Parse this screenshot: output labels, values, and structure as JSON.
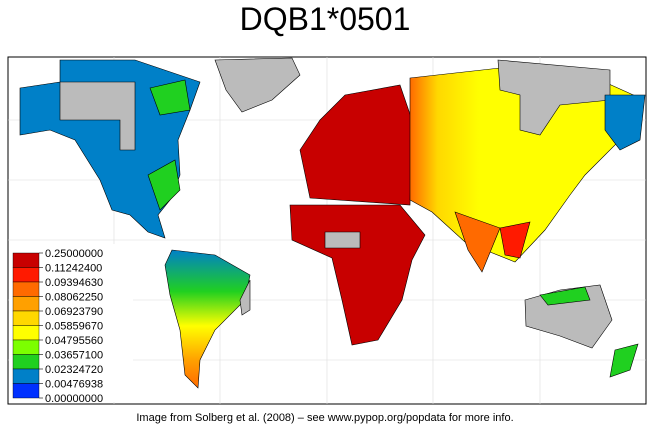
{
  "title": "DQB1*0501",
  "legend": {
    "labels": [
      "0.25000000",
      "0.11242400",
      "0.09394630",
      "0.08062250",
      "0.06923790",
      "0.05859670",
      "0.04795560",
      "0.03657100",
      "0.02324720",
      "0.00476938",
      "0.00000000"
    ],
    "colors": [
      "#c80000",
      "#ff1a00",
      "#ff6a00",
      "#ffa000",
      "#ffd800",
      "#ffff00",
      "#7cff00",
      "#20d020",
      "#0080c8",
      "#0030ff"
    ]
  },
  "caption": "Image from Solberg et al. (2008) – see www.pypop.org/popdata for more info."
}
